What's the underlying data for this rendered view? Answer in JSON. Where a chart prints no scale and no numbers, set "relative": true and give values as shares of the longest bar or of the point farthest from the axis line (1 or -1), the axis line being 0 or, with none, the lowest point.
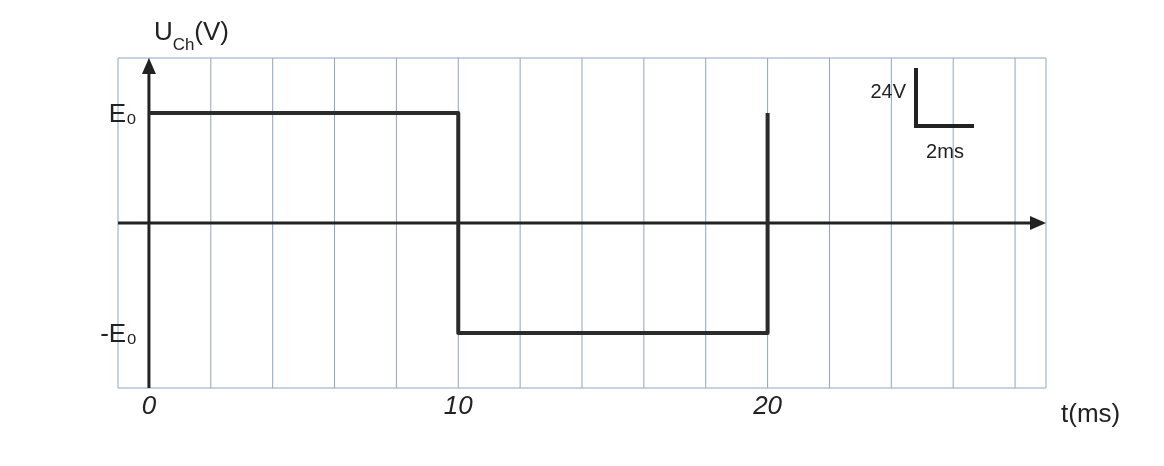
{
  "chart_data": {
    "type": "step",
    "xlabel": "t(ms)",
    "ylabel": "U$_{Ch}$(V)",
    "x": [
      0,
      10,
      20
    ],
    "series": [
      {
        "color": "#2b2b2b",
        "values": [
          1,
          -1,
          1
        ]
      }
    ],
    "relative": true,
    "xlim": [
      -1,
      29
    ],
    "xticks": [
      0,
      {
        "value": 2,
        "label": null
      },
      {
        "value": 4,
        "label": null
      },
      {
        "value": 6,
        "label": null
      },
      {
        "value": 8,
        "label": null
      },
      10,
      {
        "value": 12,
        "label": null
      },
      {
        "value": 14,
        "label": null
      },
      {
        "value": 16,
        "label": null
      },
      {
        "value": 18,
        "label": null
      },
      20,
      {
        "value": 22,
        "label": null
      },
      {
        "value": 24,
        "label": null
      },
      {
        "value": 26,
        "label": null
      },
      {
        "value": 28,
        "label": null
      }
    ],
    "grid": true,
    "marker": "none",
    "line_style": "solid",
    "annotations": [
      "E₀",
      "-E₀",
      "24V",
      "2ms"
    ]
  }
}
